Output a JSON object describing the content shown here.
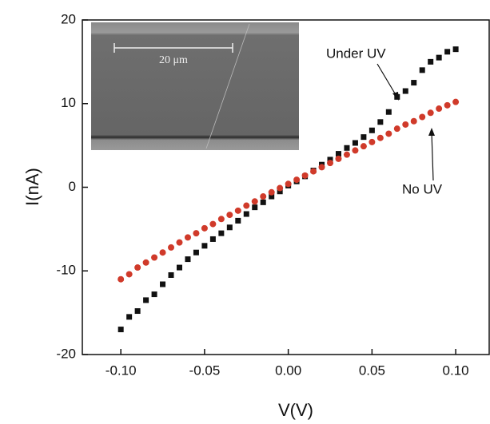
{
  "chart_data": {
    "type": "scatter",
    "xlabel": "V(V)",
    "ylabel": "I(nA)",
    "xlim": [
      -0.123,
      0.12
    ],
    "ylim": [
      -20,
      20
    ],
    "xticks": [
      {
        "value": -0.1,
        "label": "-0.10"
      },
      {
        "value": -0.05,
        "label": "-0.05"
      },
      {
        "value": 0,
        "label": "0.00"
      },
      {
        "value": 0.05,
        "label": "0.05"
      },
      {
        "value": 0.1,
        "label": "0.10"
      }
    ],
    "yticks": [
      -20,
      -10,
      0,
      10,
      20
    ],
    "x": [
      -0.1,
      -0.095,
      -0.09,
      -0.085,
      -0.08,
      -0.075,
      -0.07,
      -0.065,
      -0.06,
      -0.055,
      -0.05,
      -0.045,
      -0.04,
      -0.035,
      -0.03,
      -0.025,
      -0.02,
      -0.015,
      -0.01,
      -0.005,
      0,
      0.005,
      0.01,
      0.015,
      0.02,
      0.025,
      0.03,
      0.035,
      0.04,
      0.045,
      0.05,
      0.055,
      0.06,
      0.065,
      0.07,
      0.075,
      0.08,
      0.085,
      0.09,
      0.095,
      0.1
    ],
    "series": [
      {
        "name": "Under UV",
        "color": "#111111",
        "marker": "square",
        "values": [
          -17,
          -15.5,
          -14.8,
          -13.5,
          -12.8,
          -11.6,
          -10.5,
          -9.6,
          -8.6,
          -7.8,
          -7.0,
          -6.2,
          -5.5,
          -4.8,
          -4.0,
          -3.2,
          -2.4,
          -1.8,
          -1.1,
          -0.5,
          0.2,
          0.7,
          1.3,
          2.0,
          2.7,
          3.3,
          4.0,
          4.7,
          5.3,
          6.0,
          6.8,
          7.8,
          9.0,
          10.8,
          11.5,
          12.5,
          14.0,
          15.0,
          15.5,
          16.2,
          16.5
        ]
      },
      {
        "name": "No UV",
        "color": "#d03a2a",
        "marker": "circle",
        "values": [
          -11.0,
          -10.4,
          -9.6,
          -9.0,
          -8.4,
          -7.8,
          -7.2,
          -6.6,
          -6.0,
          -5.5,
          -4.9,
          -4.4,
          -3.8,
          -3.3,
          -2.8,
          -2.2,
          -1.7,
          -1.1,
          -0.6,
          -0.1,
          0.4,
          0.9,
          1.4,
          1.9,
          2.4,
          2.9,
          3.4,
          3.9,
          4.4,
          4.9,
          5.4,
          5.9,
          6.4,
          7.0,
          7.5,
          7.9,
          8.4,
          8.9,
          9.4,
          9.8,
          10.2
        ]
      }
    ],
    "inset_label": "20 μm"
  }
}
